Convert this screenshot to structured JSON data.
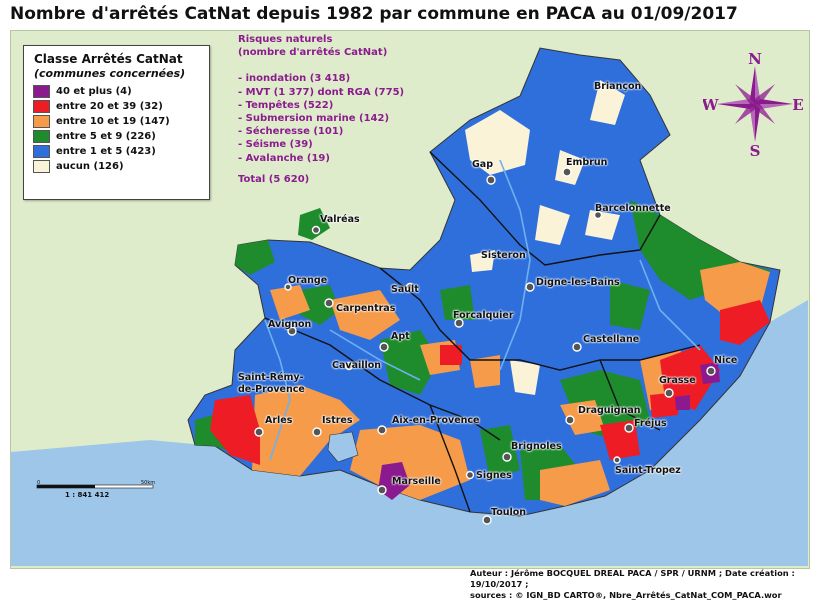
{
  "title": "Nombre d'arrêtés CatNat depuis 1982 par commune en PACA au 01/09/2017",
  "legend": {
    "title": "Classe Arrêtés CatNat",
    "subtitle": "(communes concernées)",
    "classes": [
      {
        "label": "40  et plus  (4)",
        "color": "#8b1a8e"
      },
      {
        "label": "entre 20 et 39 (32)",
        "color": "#ee1c24"
      },
      {
        "label": "entre 10 et 19 (147)",
        "color": "#f59b4a"
      },
      {
        "label": "entre 5 et 9 (226)",
        "color": "#1e8c2d"
      },
      {
        "label": "entre 1 et 5 (423)",
        "color": "#2f6fdc"
      },
      {
        "label": "aucun (126)",
        "color": "#fbf3d7"
      }
    ]
  },
  "risks": {
    "heading1": "Risques naturels",
    "heading2": "(nombre d'arrêtés CatNat)",
    "items": [
      "- inondation (3 418)",
      "- MVT (1 377) dont RGA (775)",
      "- Tempêtes (522)",
      "- Submersion marine (142)",
      "- Sécheresse (101)",
      "- Séisme (39)",
      "- Avalanche (19)"
    ],
    "total": "Total (5 620)"
  },
  "compass": {
    "n": "N",
    "s": "S",
    "e": "E",
    "w": "W"
  },
  "scale": {
    "zero": "0",
    "max": "50km",
    "ratio": "1 :  841 412"
  },
  "towns": [
    {
      "name": "Briançon"
    },
    {
      "name": "Gap"
    },
    {
      "name": "Embrun"
    },
    {
      "name": "Barcelonnette"
    },
    {
      "name": "Valréas"
    },
    {
      "name": "Sisteron"
    },
    {
      "name": "Digne-les-Bains"
    },
    {
      "name": "Orange"
    },
    {
      "name": "Sault"
    },
    {
      "name": "Carpentras"
    },
    {
      "name": "Forcalquier"
    },
    {
      "name": "Avignon"
    },
    {
      "name": "Apt"
    },
    {
      "name": "Castellane"
    },
    {
      "name": "Cavaillon"
    },
    {
      "name": "Nice"
    },
    {
      "name": "Saint-Rémy-"
    },
    {
      "name": "de-Provence"
    },
    {
      "name": "Grasse"
    },
    {
      "name": "Draguignan"
    },
    {
      "name": "Arles"
    },
    {
      "name": "Istres"
    },
    {
      "name": "Aix-en-Provence"
    },
    {
      "name": "Fréjus"
    },
    {
      "name": "Brignoles"
    },
    {
      "name": "Saint-Tropez"
    },
    {
      "name": "Signes"
    },
    {
      "name": "Marseille"
    },
    {
      "name": "Toulon"
    }
  ],
  "footer": {
    "line1": "Auteur : Jérôme BOCQUEL DREAL PACA / SPR / URNM ; Date création : 19/10/2017  ;",
    "line2": "sources : © IGN_BD CARTO®, Nbre_Arrêtés_CatNat_COM_PACA.wor"
  }
}
